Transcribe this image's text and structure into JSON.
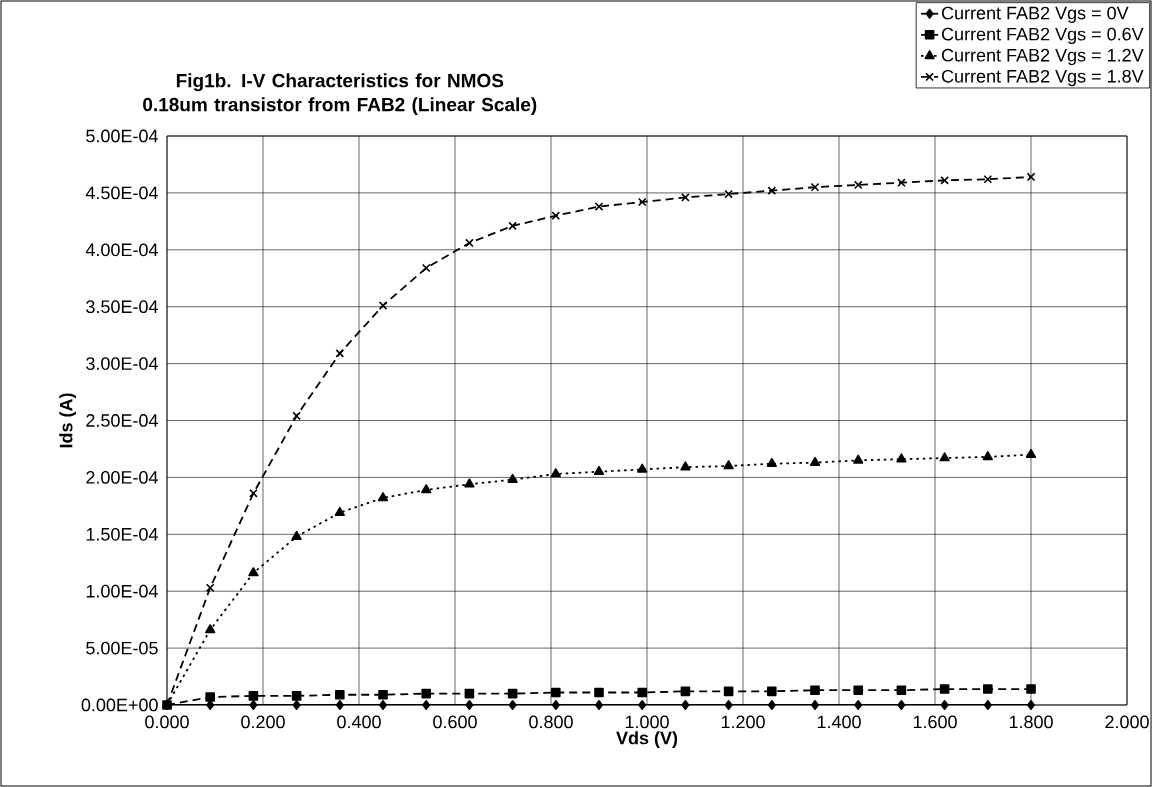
{
  "chart_data": {
    "type": "line",
    "title": "Fig1b. I-V Characteristics for NMOS 0.18um transistor from FAB2 (Linear Scale)",
    "xlabel": "Vds (V)",
    "ylabel": "Ids (A)",
    "x": [
      0,
      0.09,
      0.18,
      0.27,
      0.36,
      0.45,
      0.54,
      0.63,
      0.72,
      0.81,
      0.9,
      0.99,
      1.08,
      1.17,
      1.26,
      1.35,
      1.44,
      1.53,
      1.62,
      1.71,
      1.8
    ],
    "series": [
      {
        "name": "Current FAB2 Vgs = 0V",
        "color": "#000000",
        "marker": "diamond",
        "line_style": "solid",
        "values": [
          0,
          0,
          0,
          0,
          0,
          0,
          0,
          0,
          0,
          0,
          0,
          0,
          0,
          0,
          0,
          0,
          0,
          0,
          0,
          0,
          0
        ]
      },
      {
        "name": "Current FAB2 Vgs = 0.6V",
        "color": "#000000",
        "marker": "square",
        "line_style": "dashed",
        "values": [
          0,
          7e-06,
          8e-06,
          8e-06,
          9e-06,
          9e-06,
          1e-05,
          1e-05,
          1e-05,
          1.1e-05,
          1.1e-05,
          1.1e-05,
          1.2e-05,
          1.2e-05,
          1.2e-05,
          1.3e-05,
          1.3e-05,
          1.3e-05,
          1.4e-05,
          1.4e-05,
          1.4e-05
        ]
      },
      {
        "name": "Current FAB2 Vgs = 1.2V",
        "color": "#000000",
        "marker": "triangle",
        "line_style": "dotted",
        "values": [
          0,
          6.6e-05,
          0.000116,
          0.000148,
          0.000169,
          0.000182,
          0.000189,
          0.000194,
          0.000198,
          0.000203,
          0.000205,
          0.000207,
          0.000209,
          0.00021,
          0.000212,
          0.000213,
          0.000215,
          0.000216,
          0.000217,
          0.000218,
          0.00022
        ]
      },
      {
        "name": "Current FAB2 Vgs = 1.8V",
        "color": "#000000",
        "marker": "cross",
        "line_style": "dashed",
        "values": [
          0,
          0.000103,
          0.000186,
          0.000254,
          0.000309,
          0.000351,
          0.000384,
          0.000406,
          0.000421,
          0.00043,
          0.000438,
          0.000442,
          0.000446,
          0.000449,
          0.000452,
          0.000455,
          0.000457,
          0.000459,
          0.000461,
          0.000462,
          0.000464
        ]
      }
    ],
    "xlim": [
      0,
      2
    ],
    "ylim": [
      0,
      0.0005
    ],
    "xticks": [
      {
        "value": 0,
        "label": "0.000"
      },
      {
        "value": 0.2,
        "label": "0.200"
      },
      {
        "value": 0.4,
        "label": "0.400"
      },
      {
        "value": 0.6,
        "label": "0.600"
      },
      {
        "value": 0.8,
        "label": "0.800"
      },
      {
        "value": 1.0,
        "label": "1.000"
      },
      {
        "value": 1.2,
        "label": "1.200"
      },
      {
        "value": 1.4,
        "label": "1.400"
      },
      {
        "value": 1.6,
        "label": "1.600"
      },
      {
        "value": 1.8,
        "label": "1.800"
      },
      {
        "value": 2.0,
        "label": "2.000"
      }
    ],
    "yticks": [
      {
        "value": 0,
        "label": "0.00E+00"
      },
      {
        "value": 5e-05,
        "label": "5.00E-05"
      },
      {
        "value": 0.0001,
        "label": "1.00E-04"
      },
      {
        "value": 0.00015,
        "label": "1.50E-04"
      },
      {
        "value": 0.0002,
        "label": "2.00E-04"
      },
      {
        "value": 0.00025,
        "label": "2.50E-04"
      },
      {
        "value": 0.0003,
        "label": "3.00E-04"
      },
      {
        "value": 0.00035,
        "label": "3.50E-04"
      },
      {
        "value": 0.0004,
        "label": "4.00E-04"
      },
      {
        "value": 0.00045,
        "label": "4.50E-04"
      },
      {
        "value": 0.0005,
        "label": "5.00E-04"
      }
    ],
    "grid": true,
    "legend": "top right"
  }
}
